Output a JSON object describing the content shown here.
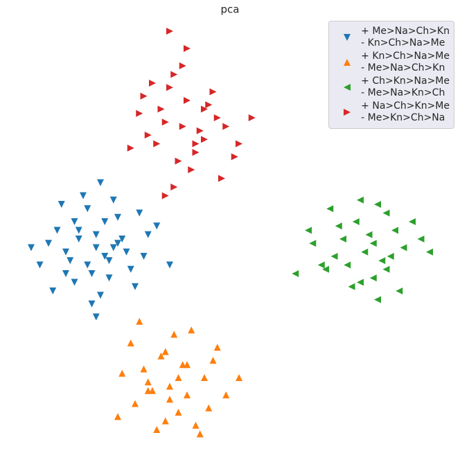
{
  "chart_data": {
    "type": "scatter",
    "title": "pca",
    "xlim": [
      0,
      100
    ],
    "ylim": [
      0,
      100
    ],
    "legend": "upper right",
    "series": [
      {
        "name": "+ Me>Na>Ch>Kn\n- Kn>Ch>Na>Me",
        "color": "#1f77b4",
        "marker": "v",
        "x": [
          19,
          15,
          22,
          25,
          12,
          18,
          21,
          8,
          30,
          17,
          14,
          23,
          27,
          10,
          20,
          16,
          24,
          13,
          19,
          28,
          6,
          33,
          11,
          22,
          18,
          26,
          15,
          20,
          9,
          29,
          17,
          24,
          14,
          21,
          36,
          4,
          19,
          31,
          12,
          23
        ],
        "values": [
          46,
          50,
          43,
          48,
          45,
          40,
          52,
          47,
          44,
          55,
          38,
          46,
          41,
          50,
          35,
          58,
          53,
          43,
          49,
          37,
          42,
          51,
          56,
          39,
          33,
          45,
          48,
          61,
          36,
          54,
          42,
          47,
          52,
          44,
          42,
          46,
          30,
          49,
          40,
          57
        ]
      },
      {
        "name": "+ Kn>Ch>Na>Me\n- Me>Na>Ch>Kn",
        "color": "#ff7f0e",
        "marker": "^",
        "x": [
          36,
          30,
          40,
          44,
          28,
          35,
          38,
          46,
          32,
          42,
          25,
          37,
          49,
          33,
          39,
          27,
          45,
          31,
          41,
          36,
          24,
          52,
          34,
          43,
          29,
          38,
          47,
          35,
          31,
          40
        ],
        "values": [
          14,
          18,
          12,
          16,
          10,
          22,
          8,
          20,
          13,
          5,
          17,
          26,
          12,
          4,
          19,
          24,
          9,
          15,
          27,
          11,
          7,
          16,
          21,
          3,
          29,
          16,
          23,
          6,
          13,
          19
        ]
      },
      {
        "name": "+ Ch>Kn>Na>Me\n- Me>Na>Kn>Ch",
        "color": "#2ca02c",
        "marker": "<",
        "x": [
          81,
          76,
          85,
          88,
          72,
          79,
          83,
          90,
          74,
          86,
          69,
          80,
          94,
          77,
          84,
          65,
          82,
          89,
          75,
          87,
          71,
          92,
          78,
          83,
          80,
          86,
          73,
          96,
          68,
          84
        ],
        "values": [
          45,
          48,
          43,
          50,
          41,
          52,
          39,
          46,
          44,
          54,
          47,
          38,
          48,
          42,
          56,
          40,
          49,
          36,
          51,
          44,
          42,
          52,
          37,
          47,
          57,
          41,
          55,
          45,
          50,
          34
        ]
      },
      {
        "name": "+ Na>Ch>Kn>Me\n- Me>Kn>Ch>Na",
        "color": "#d62728",
        "marker": ">",
        "x": [
          39,
          34,
          44,
          47,
          31,
          40,
          42,
          36,
          49,
          38,
          29,
          45,
          52,
          37,
          41,
          33,
          46,
          35,
          43,
          55,
          27,
          39,
          48,
          32,
          44,
          37,
          40,
          51,
          30,
          42,
          36,
          35
        ],
        "values": [
          74,
          78,
          71,
          76,
          72,
          80,
          68,
          83,
          74,
          66,
          77,
          79,
          70,
          86,
          64,
          70,
          82,
          75,
          73,
          76,
          69,
          88,
          62,
          84,
          78,
          60,
          92,
          67,
          81,
          70,
          96,
          58
        ]
      }
    ]
  }
}
